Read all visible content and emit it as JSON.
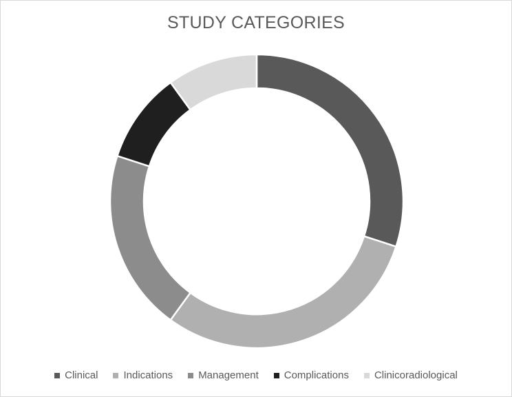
{
  "chart_data": {
    "type": "pie",
    "variant": "donut",
    "title": "STUDY CATEGORIES",
    "legend_position": "bottom",
    "categories": [
      "Clinical",
      "Indications",
      "Management",
      "Complications",
      "Clinicoradiological"
    ],
    "values": [
      30,
      30,
      20,
      10,
      10
    ],
    "colors": [
      "#595959",
      "#b0b0b0",
      "#8c8c8c",
      "#1f1f1f",
      "#d9d9d9"
    ]
  }
}
